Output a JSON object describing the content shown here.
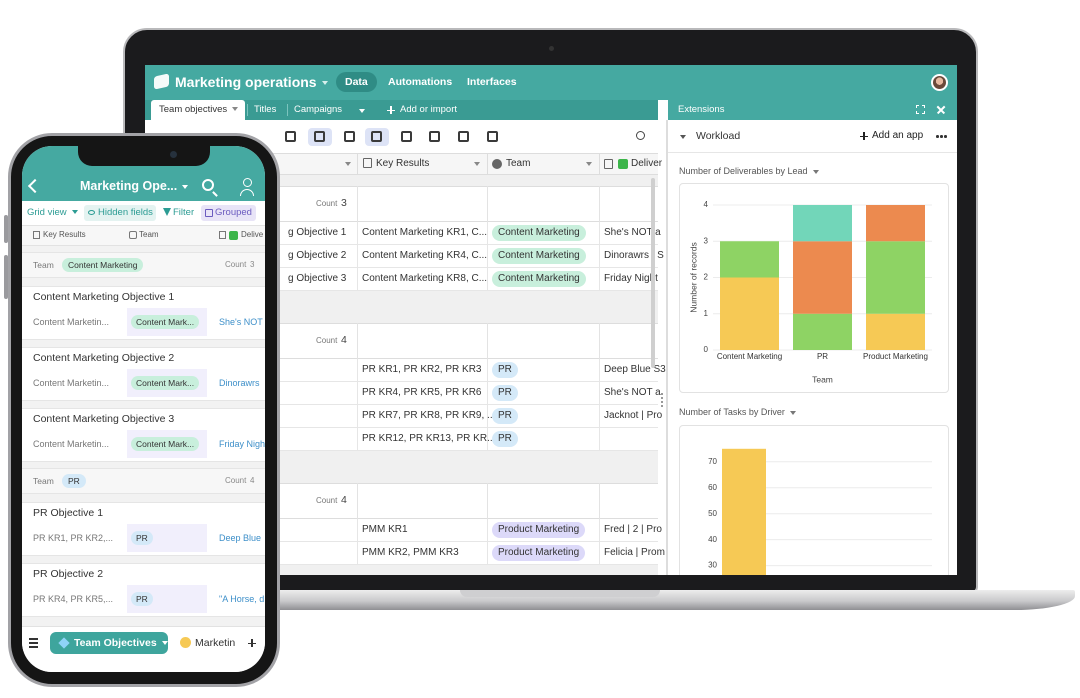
{
  "laptop": {
    "app_title": "Marketing operations",
    "nav": [
      "Data",
      "Automations",
      "Interfaces"
    ],
    "tables": [
      "Team objectives",
      "Titles",
      "Campaigns"
    ],
    "add_table": "Add or import",
    "columns": [
      "Key Results",
      "Team",
      "Deliver"
    ],
    "groups": [
      {
        "count_label": "Count",
        "count": 3,
        "rows": [
          {
            "name": "g Objective 1",
            "key_results": "Content Marketing KR1, C...",
            "team": "Content Marketing",
            "deliverables": "She's NOT a"
          },
          {
            "name": "g Objective 2",
            "key_results": "Content Marketing KR4, C...",
            "team": "Content Marketing",
            "deliverables": "Dinorawrs | S"
          },
          {
            "name": "g Objective 3",
            "key_results": "Content Marketing KR8, C...",
            "team": "Content Marketing",
            "deliverables": "Friday Night"
          }
        ]
      },
      {
        "count_label": "Count",
        "count": 4,
        "rows": [
          {
            "key_results": "PR KR1, PR KR2, PR KR3",
            "team": "PR",
            "deliverables": "Deep Blue S3"
          },
          {
            "key_results": "PR KR4, PR KR5, PR KR6",
            "team": "PR",
            "deliverables": "She's NOT a"
          },
          {
            "key_results": "PR KR7, PR KR8, PR KR9, ...",
            "team": "PR",
            "deliverables": "Jacknot | Pro"
          },
          {
            "key_results": "PR KR12, PR KR13, PR KR...",
            "team": "PR"
          }
        ]
      },
      {
        "count_label": "Count",
        "count": 4,
        "rows": [
          {
            "key_results": "PMM KR1",
            "team": "Product Marketing",
            "deliverables": "Fred | 2 | Pro"
          },
          {
            "key_results": "PMM KR2, PMM KR3",
            "team": "Product Marketing",
            "deliverables": "Felicia | Prom"
          }
        ]
      }
    ]
  },
  "extensions": {
    "title": "Extensions",
    "section": "Workload",
    "add_app": "Add an app"
  },
  "chart_data": [
    {
      "type": "bar",
      "stacked": true,
      "title": "Number of Deliverables by Lead",
      "x_label": "Team",
      "y_label": "Number of records",
      "categories": [
        "Content Marketing",
        "PR",
        "Product Marketing"
      ],
      "series": [
        {
          "color": "#f6c955",
          "values": [
            2,
            0,
            1
          ]
        },
        {
          "color": "#8ed364",
          "values": [
            1,
            1,
            2
          ]
        },
        {
          "color": "#ec8a4f",
          "values": [
            0,
            2,
            1
          ]
        },
        {
          "color": "#72d6b9",
          "values": [
            0,
            1,
            0
          ]
        }
      ],
      "ylim": [
        0,
        4
      ],
      "yticks": [
        0,
        1,
        2,
        3,
        4
      ],
      "grid": true
    },
    {
      "type": "bar",
      "title": "Number of Tasks by Driver",
      "categories": [
        null
      ],
      "values": [
        75
      ],
      "color": "#f6c955",
      "ylim": [
        26,
        78
      ],
      "yticks": [
        30,
        40,
        50,
        60,
        70
      ],
      "grid": true
    }
  ],
  "phone": {
    "title": "Marketing Ope...",
    "toolbar": [
      "Grid view",
      "Hidden fields",
      "Filter",
      "Grouped"
    ],
    "columns": [
      "Key Results",
      "Team",
      "Delive"
    ],
    "groups": [
      {
        "label": "Team",
        "value": "Content Marketing",
        "count_label": "Count",
        "count": 3,
        "records": [
          {
            "title": "Content Marketing Objective 1",
            "key_results": "Content Marketin...",
            "team": "Content Mark...",
            "deliverables": "She's NOT"
          },
          {
            "title": "Content Marketing Objective 2",
            "key_results": "Content Marketin...",
            "team": "Content Mark...",
            "deliverables": "Dinorawrs"
          },
          {
            "title": "Content Marketing Objective 3",
            "key_results": "Content Marketin...",
            "team": "Content Mark...",
            "deliverables": "Friday Nigh"
          }
        ]
      },
      {
        "label": "Team",
        "value": "PR",
        "count_label": "Count",
        "count": 4,
        "records": [
          {
            "title": "PR Objective 1",
            "key_results": "PR KR1, PR KR2,...",
            "team": "PR",
            "deliverables": "Deep Blue"
          },
          {
            "title": "PR Objective 2",
            "key_results": "PR KR4, PR KR5,...",
            "team": "PR",
            "deliverables": "\"A Horse, d"
          }
        ]
      }
    ],
    "current_table": "Team Objectives",
    "next_table": "Marketin"
  }
}
